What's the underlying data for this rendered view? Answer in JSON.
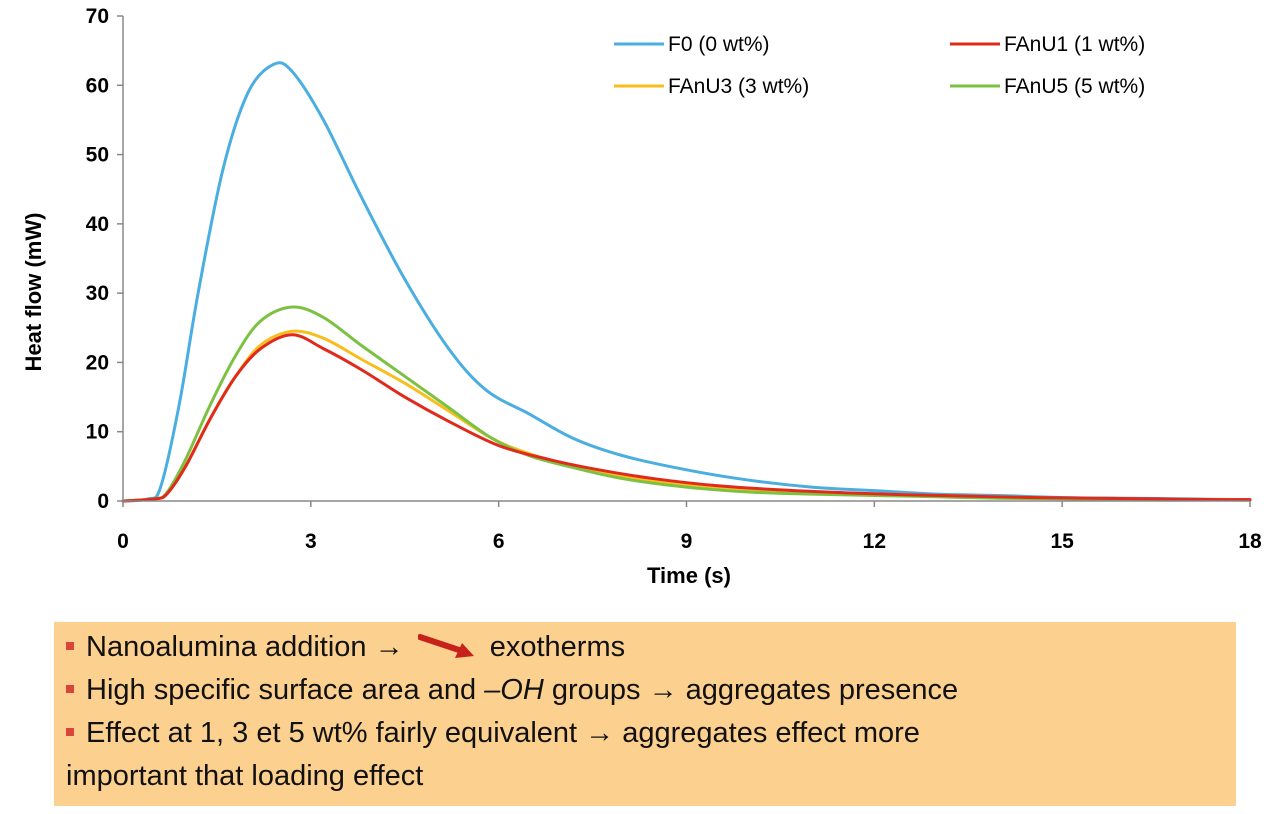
{
  "chart_data": {
    "type": "line",
    "xlabel": "Time (s)",
    "ylabel": "Heat flow (mW)",
    "xlim": [
      0,
      18
    ],
    "ylim": [
      0,
      70
    ],
    "xticks": [
      0,
      3,
      6,
      9,
      12,
      15,
      18
    ],
    "yticks": [
      0,
      10,
      20,
      30,
      40,
      50,
      60,
      70
    ],
    "grid": false,
    "legend": "top-right",
    "series": [
      {
        "name": "F0 (0 wt%)",
        "color": "#4aaee0",
        "x": [
          0,
          0.4,
          0.6,
          0.9,
          1.2,
          1.6,
          2.0,
          2.4,
          2.7,
          3.2,
          3.8,
          4.5,
          5.2,
          5.8,
          6.5,
          7.2,
          8.0,
          9.0,
          10.0,
          11.0,
          12.0,
          13.0,
          14.0,
          15.0,
          16.0,
          17.0,
          18.0
        ],
        "y": [
          0,
          0.3,
          2,
          14,
          30,
          48,
          59,
          63,
          62,
          55,
          44,
          32,
          22,
          16,
          12.5,
          9,
          6.5,
          4.5,
          3,
          2,
          1.5,
          1,
          0.8,
          0.5,
          0.4,
          0.3,
          0.2
        ]
      },
      {
        "name": "FAnU1 (1 wt%)",
        "color": "#e02a1c",
        "x": [
          0,
          0.5,
          0.7,
          1.0,
          1.4,
          1.8,
          2.2,
          2.7,
          3.2,
          3.8,
          4.5,
          5.2,
          6.0,
          6.8,
          7.6,
          8.5,
          9.5,
          10.5,
          11.5,
          12.5,
          13.5,
          14.5,
          15.5,
          16.5,
          17.5,
          18.0
        ],
        "y": [
          0,
          0.3,
          1,
          5,
          12,
          18,
          22,
          24,
          22,
          19,
          15,
          11.5,
          8,
          6,
          4.5,
          3.2,
          2.2,
          1.6,
          1.2,
          0.9,
          0.7,
          0.5,
          0.4,
          0.3,
          0.2,
          0.2
        ]
      },
      {
        "name": "FAnU3 (3 wt%)",
        "color": "#f8be1d",
        "x": [
          0,
          0.5,
          0.7,
          1.0,
          1.4,
          1.8,
          2.2,
          2.7,
          3.2,
          3.8,
          4.5,
          5.2,
          5.9,
          6.5,
          7.2,
          8.0,
          9.0,
          10.0,
          11.0,
          12.0,
          13.0,
          14.0,
          15.0,
          16.0,
          17.0,
          18.0
        ],
        "y": [
          0,
          0.3,
          1,
          5,
          12,
          18,
          22.5,
          24.5,
          23.5,
          20.5,
          17,
          13,
          9,
          6.8,
          5,
          3.5,
          2.4,
          1.7,
          1.2,
          1,
          0.8,
          0.6,
          0.4,
          0.3,
          0.2,
          0.2
        ]
      },
      {
        "name": "FAnU5 (5 wt%)",
        "color": "#7cc142",
        "x": [
          0,
          0.5,
          0.7,
          1.0,
          1.4,
          1.8,
          2.2,
          2.7,
          3.2,
          3.8,
          4.5,
          5.2,
          5.9,
          6.5,
          7.2,
          8.0,
          9.0,
          10.0,
          11.0,
          12.0,
          13.0,
          14.0,
          15.0,
          16.0,
          17.0,
          18.0
        ],
        "y": [
          0,
          0.3,
          1.2,
          6,
          14,
          21,
          26,
          28,
          26.5,
          22.5,
          18,
          13.5,
          9,
          6.5,
          4.8,
          3.2,
          2,
          1.3,
          1,
          0.8,
          0.6,
          0.4,
          0.3,
          0.2,
          0.2,
          0.1
        ]
      }
    ]
  },
  "notes": {
    "line1_a": "Nanoalumina addition →",
    "line1_b": "exotherms",
    "line1_arrow_icon": "down-right-red-arrow-icon",
    "line2_a": "High specific surface area and",
    "line2_oh": "–OH",
    "line2_b": "groups → aggregates presence",
    "line3": "Effect at 1, 3 et 5 wt% fairly equivalent → aggregates effect more",
    "line4": "important that loading effect"
  }
}
